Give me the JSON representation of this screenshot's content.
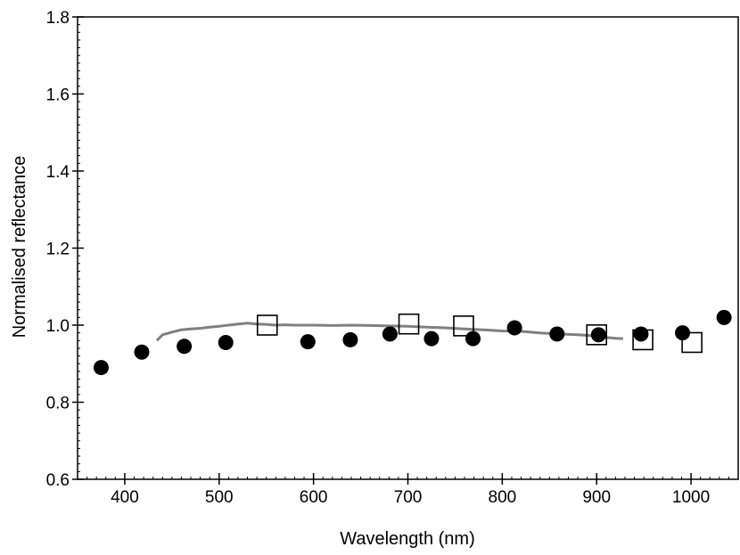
{
  "chart_data": {
    "type": "scatter",
    "xlabel": "Wavelength (nm)",
    "ylabel": "Normalised reflectance",
    "xlim": [
      350,
      1050
    ],
    "ylim": [
      0.6,
      1.8
    ],
    "x_ticks": [
      400,
      500,
      600,
      700,
      800,
      900,
      1000
    ],
    "x_tick_labels": [
      "400",
      "500",
      "600",
      "700",
      "800",
      "900",
      "1000"
    ],
    "y_ticks": [
      0.6,
      0.8,
      1.0,
      1.2,
      1.4,
      1.6,
      1.8
    ],
    "y_tick_labels": [
      "0.6",
      "0.8",
      "1.0",
      "1.2",
      "1.4",
      "1.6",
      "1.8"
    ],
    "grid": false,
    "series": [
      {
        "marker": "filled-circle",
        "color": "#000000",
        "x": [
          375,
          418,
          463,
          507,
          594,
          639,
          681,
          725,
          769,
          813,
          858,
          902,
          947,
          991,
          1035
        ],
        "y": [
          0.89,
          0.93,
          0.945,
          0.955,
          0.957,
          0.962,
          0.977,
          0.965,
          0.965,
          0.993,
          0.977,
          0.975,
          0.977,
          0.98,
          1.02
        ]
      },
      {
        "marker": "open-square",
        "color": "#000000",
        "x": [
          551,
          701,
          759,
          900,
          949,
          1001
        ],
        "y": [
          1.0,
          1.003,
          0.998,
          0.975,
          0.962,
          0.955
        ]
      },
      {
        "marker": "line",
        "color": "#808080",
        "x": [
          434,
          440,
          450,
          460,
          470,
          480,
          490,
          500,
          510,
          520,
          530,
          540,
          550,
          560,
          570,
          580,
          590,
          600,
          620,
          640,
          660,
          680,
          700,
          720,
          740,
          760,
          780,
          800,
          820,
          840,
          860,
          880,
          900,
          910,
          920,
          928
        ],
        "y": [
          0.96,
          0.975,
          0.982,
          0.988,
          0.99,
          0.992,
          0.995,
          0.997,
          1.0,
          1.003,
          1.005,
          1.003,
          1.002,
          1.0,
          1.001,
          1.0,
          1.0,
          1.0,
          0.999,
          1.0,
          0.999,
          0.998,
          0.997,
          0.995,
          0.993,
          0.99,
          0.988,
          0.985,
          0.984,
          0.98,
          0.977,
          0.975,
          0.972,
          0.968,
          0.966,
          0.965
        ]
      }
    ]
  }
}
